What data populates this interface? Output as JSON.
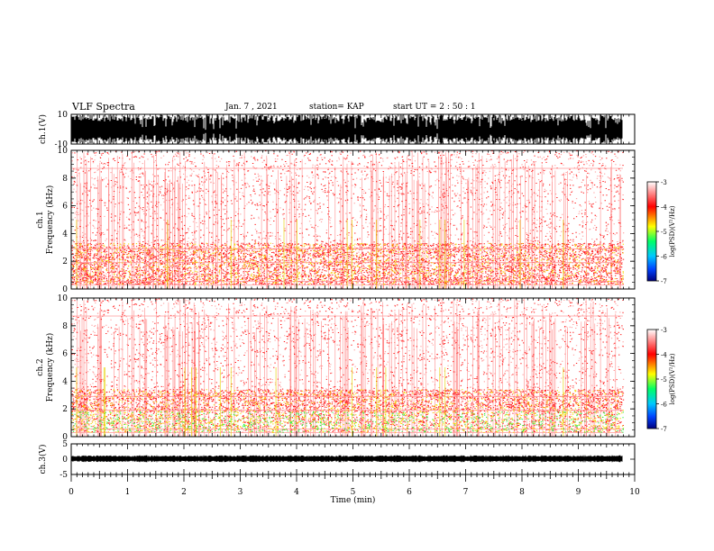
{
  "header": {
    "title": "VLF Spectra",
    "date": "Jan. 7 , 2021",
    "station": "station= KAP",
    "start": "start UT = 2 : 50 : 1"
  },
  "chart_data": [
    {
      "type": "line",
      "title": "",
      "ylabel": "ch.1(V)",
      "ylim": [
        -10,
        10
      ],
      "yticks": [
        "10",
        "-10"
      ],
      "xlim": [
        0,
        10
      ],
      "note": "dense black waveform filling the panel"
    },
    {
      "type": "heatmap",
      "ylabel": "ch.1 Frequency (kHz)",
      "ylim": [
        0,
        10
      ],
      "yticks": [
        "0",
        "2",
        "4",
        "6",
        "8",
        "10"
      ],
      "xlim": [
        0,
        10
      ],
      "colorbar": {
        "label": "log(PSD)(V²/Hz)",
        "range": [
          -7,
          -3
        ],
        "ticks": [
          "-3",
          "-4",
          "-5",
          "-6",
          "-7"
        ],
        "colors": [
          "#000080",
          "#0044ff",
          "#00c8ff",
          "#00ff66",
          "#ffff00",
          "#ff0000",
          "#ffffff"
        ]
      },
      "bands": [
        {
          "freq": [
            0.3,
            0.8
          ],
          "level": "red"
        },
        {
          "freq": [
            0.8,
            3.3
          ],
          "level": "red-yellow"
        },
        {
          "freq": [
            3.3,
            10
          ],
          "level": "sparse-red"
        }
      ]
    },
    {
      "type": "heatmap",
      "ylabel": "ch.2 Frequency (kHz)",
      "ylim": [
        0,
        10
      ],
      "yticks": [
        "0",
        "2",
        "4",
        "6",
        "8",
        "10"
      ],
      "xlim": [
        0,
        10
      ],
      "colorbar": {
        "label": "log(PSD)(V²/Hz)",
        "range": [
          -7,
          -3
        ],
        "ticks": [
          "-3",
          "-4",
          "-5",
          "-6",
          "-7"
        ],
        "colors": [
          "#000080",
          "#0044ff",
          "#00c8ff",
          "#00ff66",
          "#ffff00",
          "#ff0000",
          "#ffffff"
        ]
      },
      "bands": [
        {
          "freq": [
            0.3,
            1.8
          ],
          "level": "green-yellow"
        },
        {
          "freq": [
            1.8,
            3.4
          ],
          "level": "red-yellow"
        },
        {
          "freq": [
            3.4,
            10
          ],
          "level": "sparse-red"
        }
      ]
    },
    {
      "type": "line",
      "ylabel": "ch.3(V)",
      "ylim": [
        -5,
        5
      ],
      "yticks": [
        "5",
        "0",
        "-5"
      ],
      "xlim": [
        0,
        10
      ],
      "xlabel": "Time (min)",
      "xticks": [
        "0",
        "1",
        "2",
        "3",
        "4",
        "5",
        "6",
        "7",
        "8",
        "9",
        "10"
      ],
      "note": "thin black band near 0 V"
    }
  ]
}
